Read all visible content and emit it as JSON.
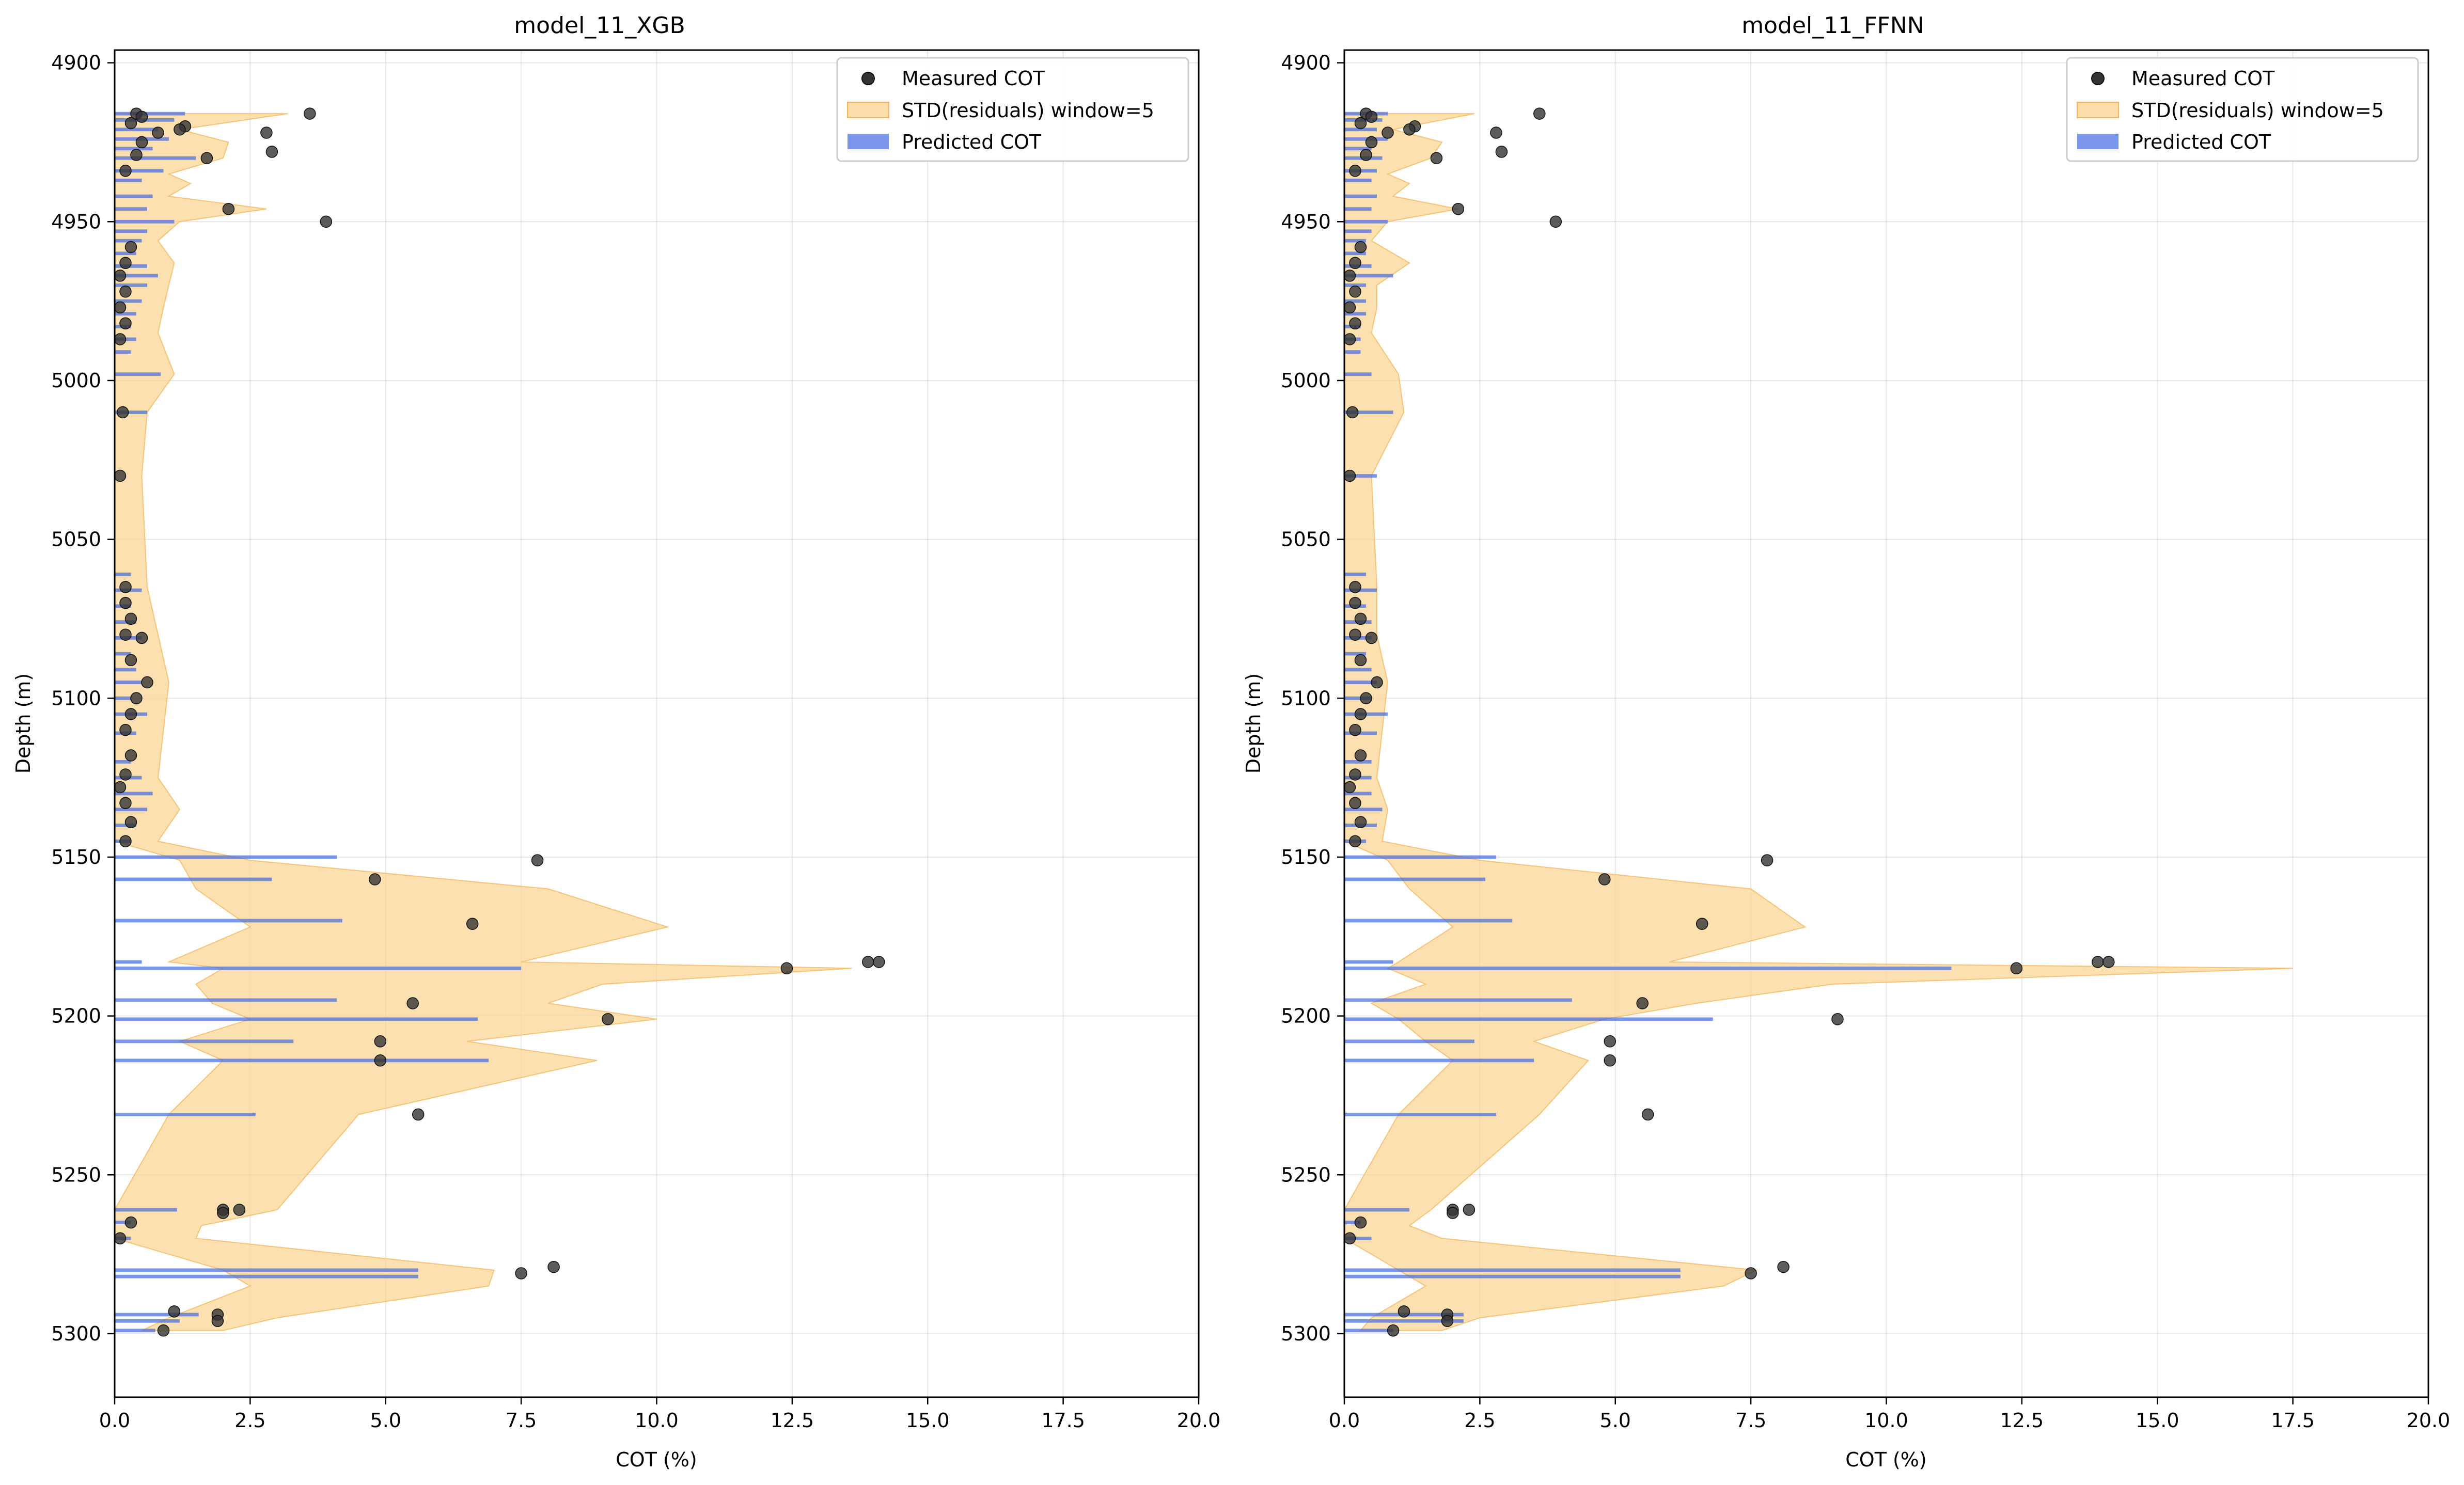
{
  "chart_data": [
    {
      "type": "bar",
      "title": "model_11_XGB",
      "xlabel": "COT (%)",
      "ylabel": "Depth (m)",
      "xlim": [
        0,
        20
      ],
      "ylim": [
        5320,
        4896
      ],
      "y_inverted": true,
      "grid": true,
      "legend_position": "top-right",
      "x_ticks": [
        "0.0",
        "2.5",
        "5.0",
        "7.5",
        "10.0",
        "12.5",
        "15.0",
        "17.5",
        "20.0"
      ],
      "y_ticks": [
        "4900",
        "4950",
        "5000",
        "5050",
        "5100",
        "5150",
        "5200",
        "5250",
        "5300"
      ],
      "legend": [
        "Measured COT",
        "STD(residuals) window=5",
        "Predicted COT"
      ],
      "series": [
        {
          "name": "Predicted COT",
          "kind": "horizontal-bar",
          "depth": [
            4916,
            4918,
            4921,
            4924,
            4927,
            4930,
            4934,
            4937,
            4942,
            4946,
            4950,
            4953,
            4956,
            4960,
            4964,
            4967,
            4970,
            4975,
            4979,
            4983,
            4987,
            4991,
            4998,
            5010,
            5061,
            5066,
            5071,
            5076,
            5081,
            5086,
            5091,
            5095,
            5100,
            5105,
            5111,
            5120,
            5125,
            5130,
            5135,
            5140,
            5145,
            5150,
            5157,
            5170,
            5183,
            5185,
            5195,
            5201,
            5208,
            5214,
            5231,
            5261,
            5265,
            5270,
            5280,
            5282,
            5294,
            5296,
            5299
          ],
          "values": [
            1.3,
            1.1,
            0.8,
            1.0,
            0.7,
            1.5,
            0.9,
            0.5,
            0.7,
            0.6,
            1.1,
            0.6,
            0.5,
            0.4,
            0.6,
            0.8,
            0.6,
            0.5,
            0.4,
            0.3,
            0.4,
            0.3,
            0.85,
            0.6,
            0.3,
            0.5,
            0.3,
            0.4,
            0.5,
            0.3,
            0.4,
            0.5,
            0.3,
            0.6,
            0.4,
            0.3,
            0.5,
            0.7,
            0.6,
            0.4,
            0.3,
            4.1,
            2.9,
            4.2,
            0.5,
            7.5,
            4.1,
            6.7,
            3.3,
            6.9,
            2.6,
            1.15,
            0.3,
            0.3,
            5.6,
            5.6,
            1.55,
            1.2,
            0.75
          ]
        },
        {
          "name": "Measured COT",
          "kind": "scatter",
          "x": [
            0.4,
            0.5,
            0.3,
            3.6,
            1.3,
            1.2,
            0.8,
            2.8,
            0.5,
            2.9,
            0.4,
            1.7,
            0.2,
            2.1,
            3.9,
            0.3,
            0.2,
            0.1,
            0.2,
            0.1,
            0.2,
            0.1,
            0.15,
            0.1,
            0.2,
            0.2,
            0.3,
            0.2,
            0.5,
            0.3,
            0.6,
            0.4,
            0.3,
            0.2,
            0.3,
            0.2,
            0.1,
            0.2,
            0.3,
            0.2,
            7.8,
            4.8,
            6.6,
            13.9,
            14.1,
            12.4,
            5.5,
            9.1,
            4.9,
            4.9,
            5.6,
            2.0,
            2.3,
            2.0,
            0.3,
            0.1,
            8.1,
            7.5,
            1.1,
            1.9,
            1.9,
            0.9
          ],
          "y": [
            4916,
            4917,
            4919,
            4916,
            4920,
            4921,
            4922,
            4922,
            4925,
            4928,
            4929,
            4930,
            4934,
            4946,
            4950,
            4958,
            4963,
            4967,
            4972,
            4977,
            4982,
            4987,
            5010,
            5030,
            5065,
            5070,
            5075,
            5080,
            5081,
            5088,
            5095,
            5100,
            5105,
            5110,
            5118,
            5124,
            5128,
            5133,
            5139,
            5145,
            5151,
            5157,
            5171,
            5183,
            5183,
            5185,
            5196,
            5201,
            5208,
            5214,
            5231,
            5261,
            5261,
            5262,
            5265,
            5270,
            5279,
            5281,
            5293,
            5294,
            5296,
            5299
          ]
        },
        {
          "name": "STD(residuals) window=5",
          "kind": "band",
          "depth": [
            4916,
            4921,
            4925,
            4930,
            4935,
            4938,
            4942,
            4946,
            4950,
            4956,
            4963,
            4970,
            4977,
            4985,
            4998,
            5010,
            5030,
            5065,
            5080,
            5095,
            5110,
            5125,
            5135,
            5145,
            5151,
            5160,
            5172,
            5183,
            5185,
            5190,
            5196,
            5201,
            5208,
            5214,
            5231,
            5261,
            5266,
            5270,
            5280,
            5285,
            5295,
            5299
          ],
          "lower": [
            0,
            0,
            0,
            0,
            0,
            0,
            0,
            0,
            0,
            0,
            0,
            0,
            0,
            0,
            0,
            0,
            0,
            0,
            0,
            0,
            0,
            0,
            0,
            0,
            1.2,
            1.5,
            2.5,
            1.0,
            2.0,
            1.5,
            1.8,
            2.5,
            1.2,
            2.0,
            1.0,
            0,
            0,
            0,
            2.0,
            2.5,
            1.0,
            0.5
          ],
          "upper": [
            3.2,
            1.2,
            2.1,
            2.0,
            1.0,
            1.4,
            1.0,
            2.8,
            1.2,
            0.8,
            1.1,
            1.0,
            0.9,
            0.8,
            1.1,
            0.6,
            0.5,
            0.6,
            0.8,
            1.0,
            0.9,
            0.8,
            1.2,
            0.8,
            2.5,
            8.0,
            10.2,
            7.5,
            13.6,
            9.0,
            8.0,
            10.0,
            6.5,
            8.9,
            4.5,
            3.0,
            1.6,
            1.5,
            7.0,
            6.9,
            3.0,
            2.0
          ]
        }
      ]
    },
    {
      "type": "bar",
      "title": "model_11_FFNN",
      "xlabel": "COT (%)",
      "ylabel": "Depth (m)",
      "xlim": [
        0,
        20
      ],
      "ylim": [
        5320,
        4896
      ],
      "y_inverted": true,
      "grid": true,
      "legend_position": "top-right",
      "x_ticks": [
        "0.0",
        "2.5",
        "5.0",
        "7.5",
        "10.0",
        "12.5",
        "15.0",
        "17.5",
        "20.0"
      ],
      "y_ticks": [
        "4900",
        "4950",
        "5000",
        "5050",
        "5100",
        "5150",
        "5200",
        "5250",
        "5300"
      ],
      "legend": [
        "Measured COT",
        "STD(residuals) window=5",
        "Predicted COT"
      ],
      "series": [
        {
          "name": "Predicted COT",
          "kind": "horizontal-bar",
          "depth": [
            4916,
            4918,
            4921,
            4924,
            4927,
            4930,
            4934,
            4937,
            4942,
            4946,
            4950,
            4953,
            4956,
            4960,
            4964,
            4967,
            4970,
            4975,
            4979,
            4983,
            4987,
            4991,
            4998,
            5010,
            5030,
            5061,
            5066,
            5071,
            5076,
            5081,
            5086,
            5091,
            5095,
            5100,
            5105,
            5111,
            5120,
            5125,
            5130,
            5135,
            5140,
            5145,
            5150,
            5157,
            5170,
            5183,
            5185,
            5195,
            5201,
            5208,
            5214,
            5231,
            5261,
            5265,
            5270,
            5280,
            5282,
            5294,
            5296,
            5299
          ],
          "values": [
            0.8,
            0.7,
            0.6,
            0.8,
            0.5,
            0.7,
            0.6,
            0.5,
            0.6,
            0.5,
            0.8,
            0.5,
            0.4,
            0.4,
            0.5,
            0.9,
            0.4,
            0.4,
            0.4,
            0.3,
            0.3,
            0.3,
            0.5,
            0.9,
            0.6,
            0.4,
            0.6,
            0.4,
            0.5,
            0.5,
            0.4,
            0.5,
            0.6,
            0.5,
            0.8,
            0.6,
            0.5,
            0.5,
            0.5,
            0.7,
            0.6,
            0.4,
            2.8,
            2.6,
            3.1,
            0.9,
            11.2,
            4.2,
            6.8,
            2.4,
            3.5,
            2.8,
            1.2,
            0.3,
            0.5,
            6.2,
            6.2,
            2.2,
            2.2,
            0.9
          ]
        },
        {
          "name": "Measured COT",
          "kind": "scatter",
          "x": [
            0.4,
            0.5,
            0.3,
            3.6,
            1.3,
            1.2,
            0.8,
            2.8,
            0.5,
            2.9,
            0.4,
            1.7,
            0.2,
            2.1,
            3.9,
            0.3,
            0.2,
            0.1,
            0.2,
            0.1,
            0.2,
            0.1,
            0.15,
            0.1,
            0.2,
            0.2,
            0.3,
            0.2,
            0.5,
            0.3,
            0.6,
            0.4,
            0.3,
            0.2,
            0.3,
            0.2,
            0.1,
            0.2,
            0.3,
            0.2,
            7.8,
            4.8,
            6.6,
            13.9,
            14.1,
            12.4,
            5.5,
            9.1,
            4.9,
            4.9,
            5.6,
            2.0,
            2.3,
            2.0,
            0.3,
            0.1,
            8.1,
            7.5,
            1.1,
            1.9,
            1.9,
            0.9
          ],
          "y": [
            4916,
            4917,
            4919,
            4916,
            4920,
            4921,
            4922,
            4922,
            4925,
            4928,
            4929,
            4930,
            4934,
            4946,
            4950,
            4958,
            4963,
            4967,
            4972,
            4977,
            4982,
            4987,
            5010,
            5030,
            5065,
            5070,
            5075,
            5080,
            5081,
            5088,
            5095,
            5100,
            5105,
            5110,
            5118,
            5124,
            5128,
            5133,
            5139,
            5145,
            5151,
            5157,
            5171,
            5183,
            5183,
            5185,
            5196,
            5201,
            5208,
            5214,
            5231,
            5261,
            5261,
            5262,
            5265,
            5270,
            5279,
            5281,
            5293,
            5294,
            5296,
            5299
          ]
        },
        {
          "name": "STD(residuals) window=5",
          "kind": "band",
          "depth": [
            4916,
            4921,
            4925,
            4930,
            4935,
            4938,
            4942,
            4946,
            4950,
            4956,
            4963,
            4970,
            4977,
            4985,
            4998,
            5010,
            5030,
            5065,
            5080,
            5095,
            5110,
            5125,
            5135,
            5145,
            5151,
            5160,
            5172,
            5183,
            5185,
            5190,
            5196,
            5201,
            5208,
            5214,
            5231,
            5261,
            5266,
            5270,
            5280,
            5285,
            5295,
            5299
          ],
          "lower": [
            0,
            0,
            0,
            0,
            0,
            0,
            0,
            0,
            0,
            0,
            0,
            0,
            0,
            0,
            0,
            0,
            0,
            0,
            0,
            0,
            0,
            0,
            0,
            0,
            0.8,
            1.2,
            2.0,
            1.0,
            0.8,
            1.5,
            0.5,
            1.0,
            1.5,
            2.0,
            1.0,
            0,
            0,
            0,
            1.0,
            1.5,
            0.5,
            0.3
          ],
          "upper": [
            2.4,
            0.9,
            1.8,
            1.6,
            0.8,
            1.2,
            0.9,
            2.1,
            0.8,
            0.5,
            1.2,
            0.6,
            0.6,
            0.5,
            1.0,
            1.1,
            0.5,
            0.6,
            0.6,
            0.8,
            0.7,
            0.6,
            0.8,
            0.7,
            2.5,
            7.5,
            8.5,
            6.0,
            17.5,
            9.0,
            6.5,
            4.8,
            3.5,
            4.5,
            3.6,
            1.6,
            1.2,
            1.8,
            7.6,
            7.0,
            2.5,
            1.8
          ]
        }
      ]
    }
  ]
}
